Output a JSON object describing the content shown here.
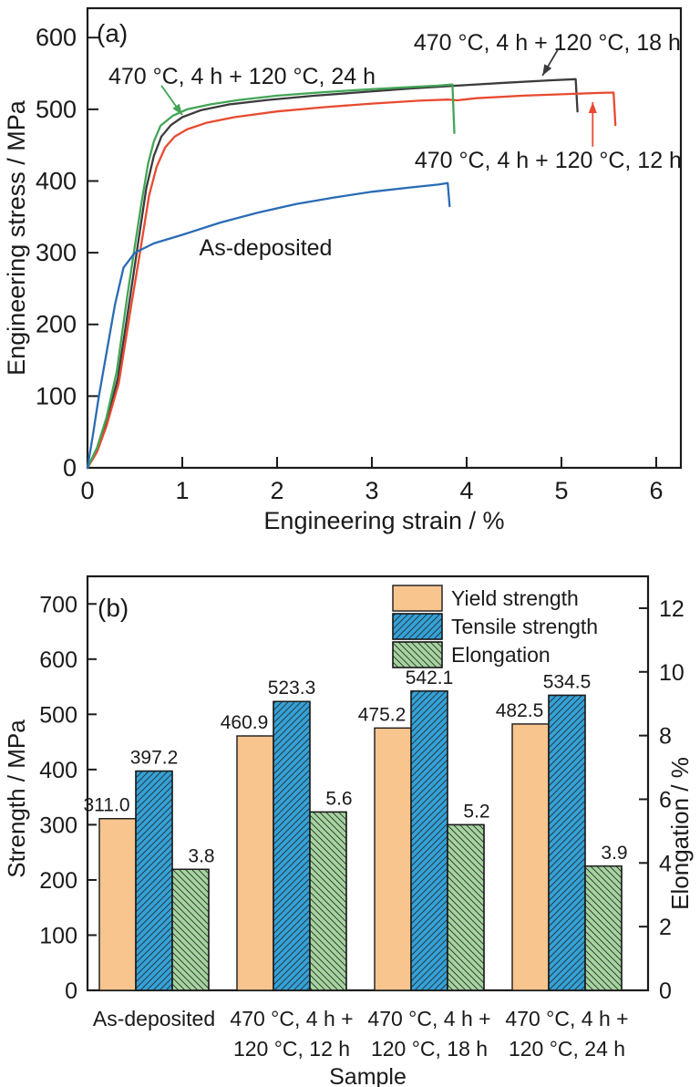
{
  "chart_data": [
    {
      "id": "a",
      "type": "line",
      "panel_label": "(a)",
      "xlabel": "Engineering strain / %",
      "ylabel": "Engineering stress / MPa",
      "xlim": [
        0,
        6.26
      ],
      "ylim": [
        0,
        641
      ],
      "xticks": [
        0,
        1,
        2,
        3,
        4,
        5,
        6
      ],
      "yticks": [
        0,
        100,
        200,
        300,
        400,
        500,
        600
      ],
      "grid": false,
      "series": [
        {
          "name": "470 °C, 4 h + 120 °C, 18 h",
          "color": "#3b3b3d",
          "label": {
            "text": "470 °C, 4 h + 120 °C, 18 h",
            "x": 4.85,
            "y": 594
          },
          "arrow": {
            "x1": 4.97,
            "y1": 585,
            "x2": 4.8,
            "y2": 547
          },
          "points": [
            [
              0,
              0
            ],
            [
              0.1,
              25
            ],
            [
              0.2,
              62
            ],
            [
              0.32,
              125
            ],
            [
              0.44,
              230
            ],
            [
              0.53,
              310
            ],
            [
              0.62,
              390
            ],
            [
              0.7,
              435
            ],
            [
              0.78,
              462
            ],
            [
              0.88,
              478
            ],
            [
              1.0,
              489
            ],
            [
              1.2,
              499
            ],
            [
              1.5,
              507
            ],
            [
              1.9,
              513
            ],
            [
              2.4,
              519
            ],
            [
              2.9,
              524
            ],
            [
              3.4,
              529
            ],
            [
              3.9,
              533
            ],
            [
              4.4,
              537
            ],
            [
              4.9,
              540.5
            ],
            [
              5.15,
              542.1
            ],
            [
              5.17,
              497
            ]
          ]
        },
        {
          "name": "470 °C, 4 h + 120 °C, 12 h",
          "color": "#e84a30",
          "label": {
            "text": "470 °C, 4 h + 120 °C, 12 h",
            "x": 4.86,
            "y": 430
          },
          "arrow": {
            "x1": 5.33,
            "y1": 448,
            "x2": 5.33,
            "y2": 510
          },
          "points": [
            [
              0,
              0
            ],
            [
              0.1,
              22
            ],
            [
              0.2,
              58
            ],
            [
              0.33,
              118
            ],
            [
              0.46,
              225
            ],
            [
              0.56,
              305
            ],
            [
              0.65,
              380
            ],
            [
              0.73,
              420
            ],
            [
              0.82,
              447
            ],
            [
              0.92,
              462
            ],
            [
              1.05,
              472
            ],
            [
              1.25,
              481
            ],
            [
              1.55,
              489
            ],
            [
              2.0,
              497
            ],
            [
              2.5,
              503
            ],
            [
              3.0,
              508
            ],
            [
              3.5,
              512
            ],
            [
              3.8,
              513.5
            ],
            [
              3.9,
              512.5
            ],
            [
              4.1,
              515.5
            ],
            [
              4.6,
              519
            ],
            [
              5.1,
              521.5
            ],
            [
              5.4,
              522.8
            ],
            [
              5.55,
              523.3
            ],
            [
              5.57,
              478
            ]
          ]
        },
        {
          "name": "470 °C, 4 h + 120 °C, 24 h",
          "color": "#43a556",
          "label": {
            "text": "470 °C, 4 h + 120 °C, 24 h",
            "x": 1.63,
            "y": 547
          },
          "arrow": {
            "x1": 0.78,
            "y1": 533,
            "x2": 1.0,
            "y2": 492
          },
          "points": [
            [
              0,
              0
            ],
            [
              0.1,
              28
            ],
            [
              0.2,
              70
            ],
            [
              0.31,
              135
            ],
            [
              0.42,
              240
            ],
            [
              0.5,
              310
            ],
            [
              0.57,
              370
            ],
            [
              0.64,
              425
            ],
            [
              0.7,
              455
            ],
            [
              0.77,
              477
            ],
            [
              0.9,
              491
            ],
            [
              1.05,
              500
            ],
            [
              1.3,
              507
            ],
            [
              1.6,
              513
            ],
            [
              2.0,
              519
            ],
            [
              2.5,
              524
            ],
            [
              3.0,
              528
            ],
            [
              3.4,
              531
            ],
            [
              3.7,
              533
            ],
            [
              3.85,
              534.5
            ],
            [
              3.87,
              467
            ]
          ]
        },
        {
          "name": "As-deposited",
          "color": "#2a6bb5",
          "label": {
            "text": "As-deposited",
            "x": 1.88,
            "y": 308
          },
          "arrow": null,
          "points": [
            [
              0,
              0
            ],
            [
              0.06,
              48
            ],
            [
              0.12,
              100
            ],
            [
              0.2,
              160
            ],
            [
              0.29,
              228
            ],
            [
              0.38,
              279
            ],
            [
              0.5,
              300
            ],
            [
              0.7,
              313
            ],
            [
              1.0,
              325
            ],
            [
              1.4,
              342
            ],
            [
              1.8,
              356
            ],
            [
              2.2,
              368
            ],
            [
              2.6,
              377
            ],
            [
              3.0,
              385
            ],
            [
              3.4,
              391
            ],
            [
              3.7,
              395
            ],
            [
              3.8,
              397.2
            ],
            [
              3.82,
              365
            ]
          ]
        }
      ]
    },
    {
      "id": "b",
      "type": "bar",
      "panel_label": "(b)",
      "xlabel": "Sample",
      "ylabel_left": "Strength / MPa",
      "ylabel_right": "Elongation / %",
      "ylim_left": [
        0,
        750
      ],
      "ylim_right": [
        0,
        13
      ],
      "yticks_left": [
        0,
        100,
        200,
        300,
        400,
        500,
        600,
        700
      ],
      "yticks_right": [
        0,
        2,
        4,
        6,
        8,
        10,
        12
      ],
      "categories": [
        [
          "As-deposited"
        ],
        [
          "470 °C, 4 h +",
          "120 °C, 12 h"
        ],
        [
          "470 °C, 4 h +",
          "120 °C, 18 h"
        ],
        [
          "470 °C, 4 h +",
          "120 °C, 24 h"
        ]
      ],
      "legend_position": "top-right",
      "series": [
        {
          "name": "Yield  strength",
          "axis": "left",
          "fill": "#f8c58f",
          "hatch": null,
          "values": [
            311.0,
            460.9,
            475.2,
            482.5
          ],
          "value_labels": [
            "311.0",
            "460.9",
            "475.2",
            "482.5"
          ]
        },
        {
          "name": "Tensile strength",
          "axis": "left",
          "fill": "#33a2d8",
          "hatch": "fwd",
          "values": [
            397.2,
            523.3,
            542.1,
            534.5
          ],
          "value_labels": [
            "397.2",
            "523.3",
            "542.1",
            "534.5"
          ]
        },
        {
          "name": "Elongation",
          "axis": "right",
          "fill": "#a5d49f",
          "hatch": "back",
          "values": [
            3.8,
            5.6,
            5.2,
            3.9
          ],
          "value_labels": [
            "3.8",
            "5.6",
            "5.2",
            "3.9"
          ]
        }
      ]
    }
  ]
}
